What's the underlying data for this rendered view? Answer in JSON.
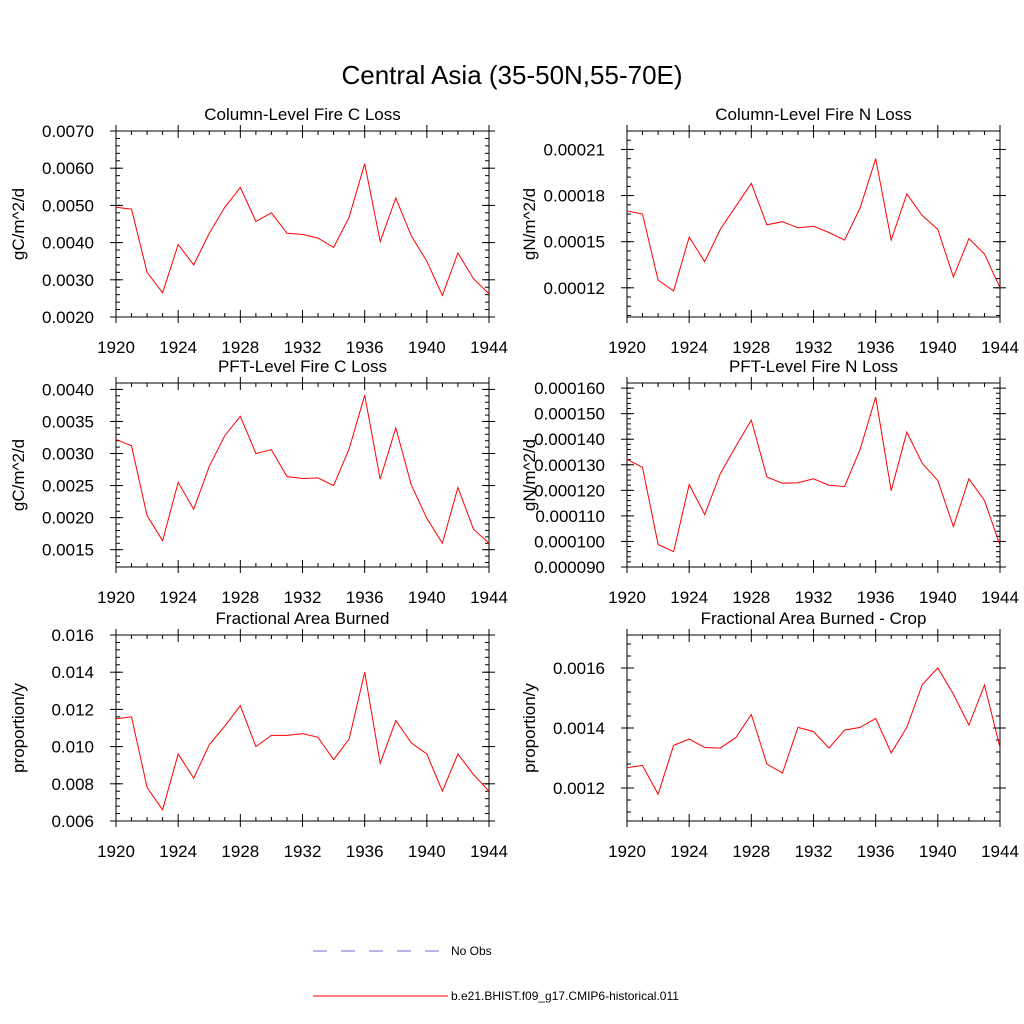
{
  "figure": {
    "title": "Central Asia (35-50N,55-70E)"
  },
  "legend": {
    "items": [
      {
        "label": "No Obs",
        "color": "#6a6acf",
        "style": "dashed"
      },
      {
        "label": "b.e21.BHIST.f09_g17.CMIP6-historical.011",
        "color": "#ff0000",
        "style": "solid"
      }
    ]
  },
  "chart_data": [
    {
      "type": "line",
      "title": "Column-Level Fire C Loss",
      "ylabel": "gC/m^2/d",
      "xlabel": "",
      "x": [
        1920,
        1921,
        1922,
        1923,
        1924,
        1925,
        1926,
        1927,
        1928,
        1929,
        1930,
        1931,
        1932,
        1933,
        1934,
        1935,
        1936,
        1937,
        1938,
        1939,
        1940,
        1941,
        1942,
        1943,
        1944
      ],
      "xlim": [
        1920,
        1944
      ],
      "xticks": [
        1920,
        1924,
        1928,
        1932,
        1936,
        1940,
        1944
      ],
      "ylim": [
        0.002,
        0.007
      ],
      "yticks": [
        0.002,
        0.003,
        0.004,
        0.005,
        0.006,
        0.007
      ],
      "ytick_labels": [
        "0.0020",
        "0.0030",
        "0.0040",
        "0.0050",
        "0.0060",
        "0.0070"
      ],
      "series": [
        {
          "color": "#ff0000",
          "values": [
            0.00495,
            0.0049,
            0.0032,
            0.00265,
            0.00395,
            0.0034,
            0.00425,
            0.00495,
            0.00548,
            0.00457,
            0.0048,
            0.00425,
            0.00422,
            0.00412,
            0.00387,
            0.00468,
            0.00612,
            0.00403,
            0.0052,
            0.00418,
            0.0035,
            0.00258,
            0.00372,
            0.00303,
            0.00262
          ]
        }
      ]
    },
    {
      "type": "line",
      "title": "Column-Level Fire N Loss",
      "ylabel": "gN/m^2/d",
      "xlabel": "",
      "x": [
        1920,
        1921,
        1922,
        1923,
        1924,
        1925,
        1926,
        1927,
        1928,
        1929,
        1930,
        1931,
        1932,
        1933,
        1934,
        1935,
        1936,
        1937,
        1938,
        1939,
        1940,
        1941,
        1942,
        1943,
        1944
      ],
      "xlim": [
        1920,
        1944
      ],
      "xticks": [
        1920,
        1924,
        1928,
        1932,
        1936,
        1940,
        1944
      ],
      "ylim": [
        0.000101,
        0.000222
      ],
      "yticks": [
        0.00012,
        0.00015,
        0.00018,
        0.00021
      ],
      "ytick_labels": [
        "0.00012",
        "0.00015",
        "0.00018",
        "0.00021"
      ],
      "series": [
        {
          "color": "#ff0000",
          "values": [
            0.00017,
            0.000168,
            0.000125,
            0.000118,
            0.000153,
            0.000137,
            0.000158,
            0.000173,
            0.000188,
            0.000161,
            0.000163,
            0.000159,
            0.00016,
            0.000156,
            0.000151,
            0.000172,
            0.000204,
            0.000151,
            0.000181,
            0.000167,
            0.000158,
            0.000127,
            0.000152,
            0.000142,
            0.00012
          ]
        }
      ]
    },
    {
      "type": "line",
      "title": "PFT-Level Fire C Loss",
      "ylabel": "gC/m^2/d",
      "xlabel": "",
      "x": [
        1920,
        1921,
        1922,
        1923,
        1924,
        1925,
        1926,
        1927,
        1928,
        1929,
        1930,
        1931,
        1932,
        1933,
        1934,
        1935,
        1936,
        1937,
        1938,
        1939,
        1940,
        1941,
        1942,
        1943,
        1944
      ],
      "xlim": [
        1920,
        1944
      ],
      "xticks": [
        1920,
        1924,
        1928,
        1932,
        1936,
        1940,
        1944
      ],
      "ylim": [
        0.00123,
        0.0041
      ],
      "yticks": [
        0.0015,
        0.002,
        0.0025,
        0.003,
        0.0035,
        0.004
      ],
      "ytick_labels": [
        "0.0015",
        "0.0020",
        "0.0025",
        "0.0030",
        "0.0035",
        "0.0040"
      ],
      "series": [
        {
          "color": "#ff0000",
          "values": [
            0.00322,
            0.00312,
            0.00203,
            0.00164,
            0.00255,
            0.00213,
            0.0028,
            0.00328,
            0.00358,
            0.003,
            0.00306,
            0.00264,
            0.00261,
            0.00262,
            0.0025,
            0.00307,
            0.00391,
            0.0026,
            0.0034,
            0.00251,
            0.00199,
            0.0016,
            0.00247,
            0.00182,
            0.0016
          ]
        }
      ]
    },
    {
      "type": "line",
      "title": "PFT-Level Fire N Loss",
      "ylabel": "gN/m^2/d",
      "xlabel": "",
      "x": [
        1920,
        1921,
        1922,
        1923,
        1924,
        1925,
        1926,
        1927,
        1928,
        1929,
        1930,
        1931,
        1932,
        1933,
        1934,
        1935,
        1936,
        1937,
        1938,
        1939,
        1940,
        1941,
        1942,
        1943,
        1944
      ],
      "xlim": [
        1920,
        1944
      ],
      "xticks": [
        1920,
        1924,
        1928,
        1932,
        1936,
        1940,
        1944
      ],
      "ylim": [
        9e-05,
        0.000162
      ],
      "yticks": [
        9e-05,
        0.0001,
        0.00011,
        0.00012,
        0.00013,
        0.00014,
        0.00015,
        0.00016
      ],
      "ytick_labels": [
        "0.000090",
        "0.000100",
        "0.000110",
        "0.000120",
        "0.000130",
        "0.000140",
        "0.000150",
        "0.000160"
      ],
      "series": [
        {
          "color": "#ff0000",
          "values": [
            0.0001321,
            0.000129,
            9.88e-05,
            9.6e-05,
            0.0001223,
            0.0001105,
            0.0001265,
            0.0001372,
            0.0001475,
            0.0001252,
            0.0001228,
            0.000123,
            0.0001245,
            0.000122,
            0.0001215,
            0.000136,
            0.0001565,
            0.0001198,
            0.0001428,
            0.0001305,
            0.0001238,
            0.0001058,
            0.0001245,
            0.000116,
            9.85e-05
          ]
        }
      ]
    },
    {
      "type": "line",
      "title": "Fractional Area Burned",
      "ylabel": "proportion/y",
      "xlabel": "",
      "x": [
        1920,
        1921,
        1922,
        1923,
        1924,
        1925,
        1926,
        1927,
        1928,
        1929,
        1930,
        1931,
        1932,
        1933,
        1934,
        1935,
        1936,
        1937,
        1938,
        1939,
        1940,
        1941,
        1942,
        1943,
        1944
      ],
      "xlim": [
        1920,
        1944
      ],
      "xticks": [
        1920,
        1924,
        1928,
        1932,
        1936,
        1940,
        1944
      ],
      "ylim": [
        0.006,
        0.016
      ],
      "yticks": [
        0.006,
        0.008,
        0.01,
        0.012,
        0.014,
        0.016
      ],
      "ytick_labels": [
        "0.006",
        "0.008",
        "0.010",
        "0.012",
        "0.014",
        "0.016"
      ],
      "series": [
        {
          "color": "#ff0000",
          "values": [
            0.0115,
            0.0116,
            0.0078,
            0.0066,
            0.0096,
            0.0083,
            0.0101,
            0.0111,
            0.0122,
            0.01,
            0.0106,
            0.0106,
            0.0107,
            0.0105,
            0.0093,
            0.0104,
            0.014,
            0.0091,
            0.0114,
            0.0102,
            0.0096,
            0.0076,
            0.0096,
            0.0085,
            0.0076
          ]
        }
      ]
    },
    {
      "type": "line",
      "title": "Fractional Area Burned - Crop",
      "ylabel": "proportion/y",
      "xlabel": "",
      "x": [
        1920,
        1921,
        1922,
        1923,
        1924,
        1925,
        1926,
        1927,
        1928,
        1929,
        1930,
        1931,
        1932,
        1933,
        1934,
        1935,
        1936,
        1937,
        1938,
        1939,
        1940,
        1941,
        1942,
        1943,
        1944
      ],
      "xlim": [
        1920,
        1944
      ],
      "xticks": [
        1920,
        1924,
        1928,
        1932,
        1936,
        1940,
        1944
      ],
      "ylim": [
        0.00109,
        0.00171
      ],
      "yticks": [
        0.0012,
        0.0014,
        0.0016
      ],
      "ytick_labels": [
        "0.0012",
        "0.0014",
        "0.0016"
      ],
      "series": [
        {
          "color": "#ff0000",
          "values": [
            0.001268,
            0.001275,
            0.001179,
            0.001342,
            0.001363,
            0.001335,
            0.001333,
            0.001368,
            0.001445,
            0.00128,
            0.00125,
            0.001402,
            0.001388,
            0.001333,
            0.001393,
            0.001402,
            0.001432,
            0.001317,
            0.001402,
            0.001545,
            0.0016,
            0.001513,
            0.00141,
            0.001543,
            0.001335
          ]
        }
      ]
    }
  ]
}
